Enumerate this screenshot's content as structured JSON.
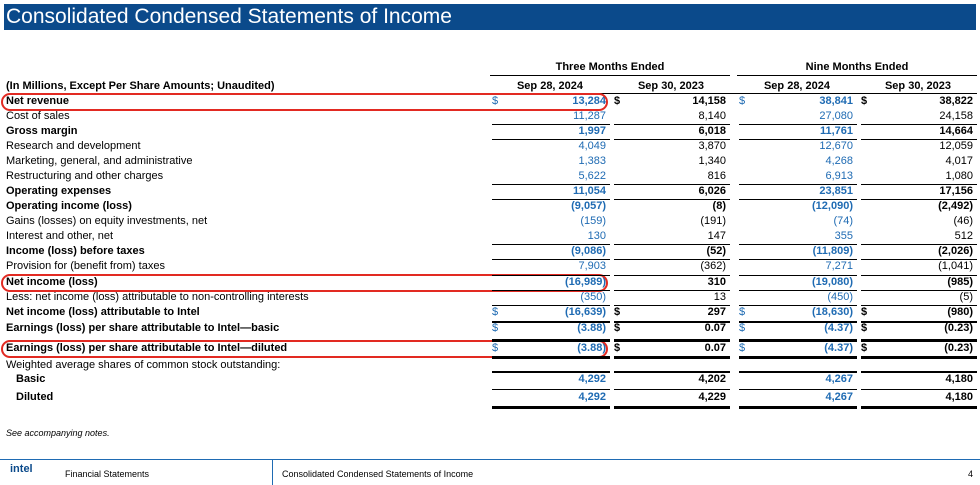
{
  "title": "Consolidated Condensed Statements of Income",
  "units_label": "(In Millions, Except Per Share Amounts; Unaudited)",
  "periods": [
    "Three Months Ended",
    "Nine Months Ended"
  ],
  "columns": [
    "Sep 28, 2024",
    "Sep 30, 2023",
    "Sep 28, 2024",
    "Sep 30, 2023"
  ],
  "rows": [
    {
      "label": "Net revenue",
      "bold": true,
      "values": [
        "13,284",
        "14,158",
        "38,841",
        "38,822"
      ],
      "dollar": true,
      "highlight": true
    },
    {
      "label": "Cost of sales",
      "values": [
        "11,287",
        "8,140",
        "27,080",
        "24,158"
      ]
    },
    {
      "label": "Gross margin",
      "bold": true,
      "values": [
        "1,997",
        "6,018",
        "11,761",
        "14,664"
      ]
    },
    {
      "label": "Research and development",
      "values": [
        "4,049",
        "3,870",
        "12,670",
        "12,059"
      ]
    },
    {
      "label": "Marketing, general, and administrative",
      "values": [
        "1,383",
        "1,340",
        "4,268",
        "4,017"
      ]
    },
    {
      "label": "Restructuring and other charges",
      "values": [
        "5,622",
        "816",
        "6,913",
        "1,080"
      ]
    },
    {
      "label": "Operating expenses",
      "bold": true,
      "values": [
        "11,054",
        "6,026",
        "23,851",
        "17,156"
      ]
    },
    {
      "label": "Operating income (loss)",
      "bold": true,
      "values": [
        "(9,057)",
        "(8)",
        "(12,090)",
        "(2,492)"
      ]
    },
    {
      "label": "Gains (losses) on equity investments, net",
      "values": [
        "(159)",
        "(191)",
        "(74)",
        "(46)"
      ]
    },
    {
      "label": "Interest and other, net",
      "values": [
        "130",
        "147",
        "355",
        "512"
      ]
    },
    {
      "label": "Income (loss) before taxes",
      "bold": true,
      "values": [
        "(9,086)",
        "(52)",
        "(11,809)",
        "(2,026)"
      ]
    },
    {
      "label": "Provision for (benefit from) taxes",
      "values": [
        "7,903",
        "(362)",
        "7,271",
        "(1,041)"
      ]
    },
    {
      "label": "Net income (loss)",
      "bold": true,
      "values": [
        "(16,989)",
        "310",
        "(19,080)",
        "(985)"
      ],
      "highlight": true
    },
    {
      "label": "Less: net income (loss) attributable to non-controlling interests",
      "values": [
        "(350)",
        "13",
        "(450)",
        "(5)"
      ]
    },
    {
      "label": "Net income (loss) attributable to Intel",
      "bold": true,
      "values": [
        "(16,639)",
        "297",
        "(18,630)",
        "(980)"
      ],
      "dollar": true
    },
    {
      "label": "Earnings (loss) per share attributable to Intel—basic",
      "bold": true,
      "values": [
        "(3.88)",
        "0.07",
        "(4.37)",
        "(0.23)"
      ],
      "dollar": true
    },
    {
      "label": "Earnings (loss) per share attributable to Intel—diluted",
      "bold": true,
      "values": [
        "(3.88)",
        "0.07",
        "(4.37)",
        "(0.23)"
      ],
      "dollar": true,
      "highlight": true
    },
    {
      "label": "Weighted average shares of common stock outstanding:",
      "values": [
        "",
        "",
        "",
        ""
      ]
    },
    {
      "label": "Basic",
      "bold": true,
      "indent": true,
      "values": [
        "4,292",
        "4,202",
        "4,267",
        "4,180"
      ]
    },
    {
      "label": "Diluted",
      "bold": true,
      "indent": true,
      "values": [
        "4,292",
        "4,229",
        "4,267",
        "4,180"
      ]
    }
  ],
  "currency_symbol": "$",
  "note": "See accompanying notes.",
  "footer": {
    "logo": "intel",
    "left": "Financial Statements",
    "center": "Consolidated Condensed Statements of Income",
    "page": "4"
  },
  "colors": {
    "title_bg": "#0b4a8b",
    "current_value": "#1f6bb3",
    "highlight": "#e22a22"
  }
}
